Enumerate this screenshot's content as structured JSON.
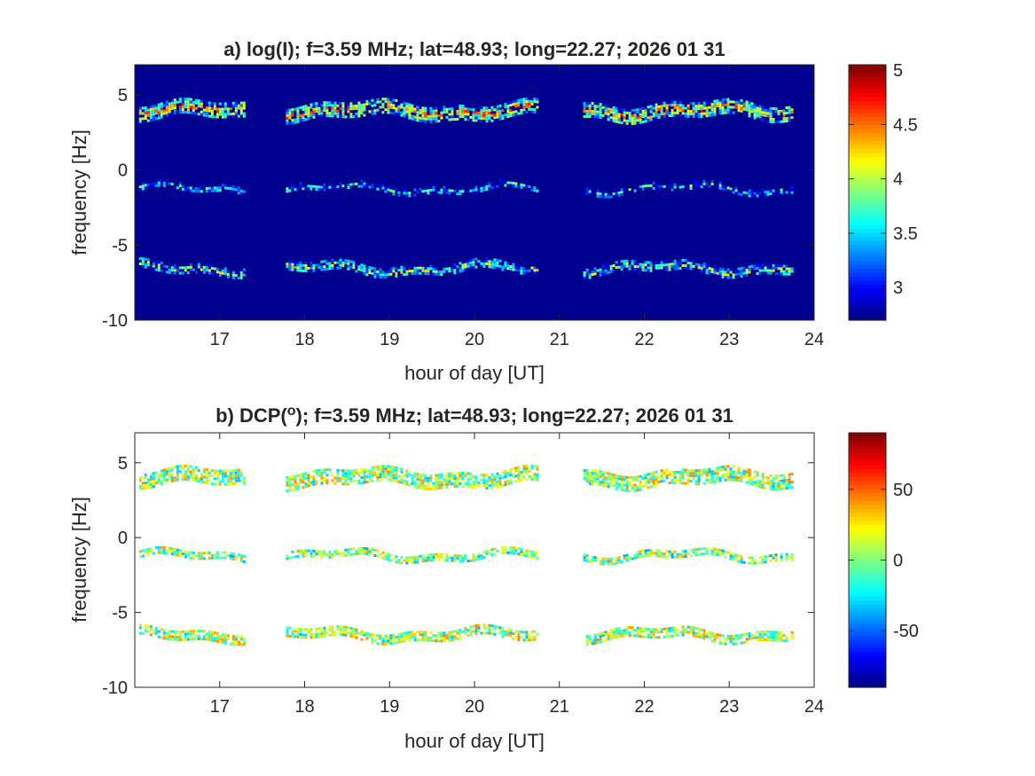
{
  "chart_data": [
    {
      "type": "heatmap",
      "title_prefix": "a) log(I); f=3.59 MHz;  lat=48.93; long=22.27; 2026 01 31",
      "title": "a) log(I); f=3.59 MHz;  lat=48.93; long=22.27; 2026 01 31",
      "xlabel": "hour of day [UT]",
      "ylabel": "frequency [Hz]",
      "xlim": [
        16,
        24
      ],
      "ylim": [
        -10,
        7
      ],
      "xticks": [
        17,
        18,
        19,
        20,
        21,
        22,
        23,
        24
      ],
      "yticks": [
        -10,
        -5,
        0,
        5
      ],
      "background": "#00008f",
      "colorbar": {
        "min": 2.7,
        "max": 5.05,
        "ticks": [
          3,
          3.5,
          4,
          4.5,
          5
        ]
      },
      "colormap": "jet",
      "segments_hours": [
        [
          16.05,
          17.28
        ],
        [
          17.78,
          20.75
        ],
        [
          21.28,
          23.75
        ]
      ],
      "bands": [
        {
          "name_hidden": true,
          "center_hz": 4.0,
          "width_hz": 0.9,
          "level": 4.3
        },
        {
          "name_hidden": true,
          "center_hz": -1.2,
          "width_hz": 0.45,
          "level": 3.6
        },
        {
          "name_hidden": true,
          "center_hz": -6.5,
          "width_hz": 0.6,
          "level": 3.9
        }
      ]
    },
    {
      "type": "heatmap",
      "title": "b) DCP(",
      "title_sup": "o",
      "title_suffix": "); f=3.59 MHz;  lat=48.93; long=22.27; 2026 01 31",
      "xlabel": "hour of day [UT]",
      "ylabel": "frequency [Hz]",
      "xlim": [
        16,
        24
      ],
      "ylim": [
        -10,
        7
      ],
      "xticks": [
        17,
        18,
        19,
        20,
        21,
        22,
        23,
        24
      ],
      "yticks": [
        -10,
        -5,
        0,
        5
      ],
      "background": "#ffffff",
      "colorbar": {
        "min": -90,
        "max": 90,
        "ticks": [
          -50,
          0,
          50
        ]
      },
      "colormap": "jet",
      "segments_hours": [
        [
          16.05,
          17.28
        ],
        [
          17.78,
          20.75
        ],
        [
          21.28,
          23.75
        ]
      ],
      "bands": [
        {
          "center_hz": 4.0,
          "width_hz": 1.0,
          "level": 5
        },
        {
          "center_hz": -1.2,
          "width_hz": 0.5,
          "level": 0
        },
        {
          "center_hz": -6.5,
          "width_hz": 0.7,
          "level": 5
        }
      ]
    }
  ]
}
